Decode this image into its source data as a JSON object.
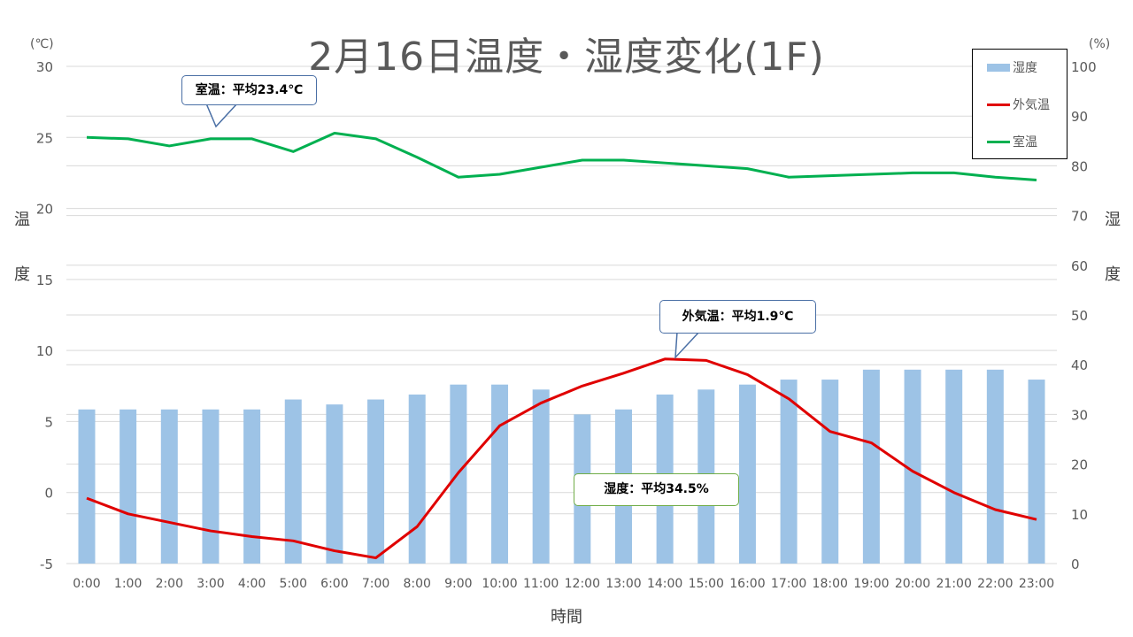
{
  "chart_data": {
    "type": "bar+line",
    "title": "2月16日温度・湿度変化(1F)",
    "xlabel": "時間",
    "ylabel_left": "温度",
    "ylabel_right": "湿度",
    "unit_left": "(℃)",
    "unit_right": "(%)",
    "ylim_left": [
      -5,
      30
    ],
    "ylim_right": [
      0,
      100
    ],
    "yticks_left": [
      "-5",
      "0",
      "5",
      "10",
      "15",
      "20",
      "25",
      "30"
    ],
    "yticks_right": [
      "0",
      "10",
      "20",
      "30",
      "40",
      "50",
      "60",
      "70",
      "80",
      "90",
      "100"
    ],
    "grid": true,
    "legend_position": "top-right",
    "categories": [
      "0:00",
      "1:00",
      "2:00",
      "3:00",
      "4:00",
      "5:00",
      "6:00",
      "7:00",
      "8:00",
      "9:00",
      "10:00",
      "11:00",
      "12:00",
      "13:00",
      "14:00",
      "15:00",
      "16:00",
      "17:00",
      "18:00",
      "19:00",
      "20:00",
      "21:00",
      "22:00",
      "23:00"
    ],
    "series": [
      {
        "name": "湿度",
        "type": "bar",
        "axis": "right",
        "color": "#9dc3e6",
        "values": [
          31,
          31,
          31,
          31,
          31,
          33,
          32,
          33,
          34,
          36,
          36,
          35,
          30,
          31,
          34,
          35,
          36,
          37,
          37,
          39,
          39,
          39,
          39,
          37
        ]
      },
      {
        "name": "外気温",
        "type": "line",
        "axis": "left",
        "color": "#e00000",
        "values": [
          -0.4,
          -1.5,
          -2.1,
          -2.7,
          -3.1,
          -3.4,
          -4.1,
          -4.6,
          -2.4,
          1.4,
          4.7,
          6.3,
          7.5,
          8.4,
          9.4,
          9.3,
          8.3,
          6.6,
          4.3,
          3.5,
          1.5,
          0.0,
          -1.2,
          -1.9
        ]
      },
      {
        "name": "室温",
        "type": "line",
        "axis": "left",
        "color": "#00b050",
        "values": [
          25.0,
          24.9,
          24.4,
          24.9,
          24.9,
          24.0,
          25.3,
          24.9,
          23.6,
          22.2,
          22.4,
          22.9,
          23.4,
          23.4,
          23.2,
          23.0,
          22.8,
          22.2,
          22.3,
          22.4,
          22.5,
          22.5,
          22.2,
          22.0
        ]
      }
    ],
    "annotations": {
      "room": "室温：平均23.4℃",
      "outdoor": "外気温：平均1.9℃",
      "humidity": "湿度：平均34.5%"
    }
  }
}
